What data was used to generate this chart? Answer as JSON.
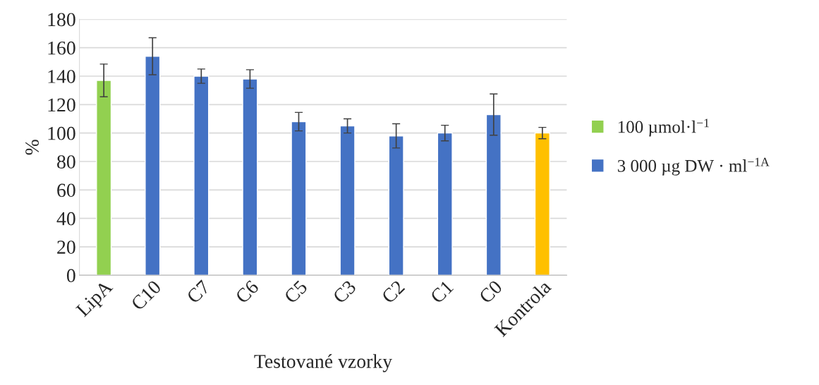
{
  "chart_data": {
    "type": "bar",
    "xlabel": "Testované vzorky",
    "ylabel": "%",
    "categories": [
      "LipA",
      "C10",
      "C7",
      "C6",
      "C5",
      "C3",
      "C2",
      "C1",
      "C0",
      "Kontrola"
    ],
    "series": [
      {
        "name": "100 µmol·l$^{−1}$",
        "color": "#92d050",
        "values": [
          137,
          null,
          null,
          null,
          null,
          null,
          null,
          null,
          null,
          null
        ],
        "errors": [
          11.5,
          null,
          null,
          null,
          null,
          null,
          null,
          null,
          null,
          null
        ]
      },
      {
        "name": "3 000 µg DW · ml$^{−1A}$",
        "color": "#4472c4",
        "values": [
          null,
          154,
          140,
          138,
          108,
          105,
          98,
          100,
          113,
          null
        ],
        "errors": [
          null,
          13,
          5,
          6.5,
          6.5,
          5,
          8.5,
          5.5,
          14.5,
          null
        ]
      },
      {
        "color": "#ffc000",
        "values": [
          null,
          null,
          null,
          null,
          null,
          null,
          null,
          null,
          null,
          100
        ],
        "errors": [
          null,
          null,
          null,
          null,
          null,
          null,
          null,
          null,
          null,
          4
        ]
      }
    ],
    "ylim": [
      0,
      180
    ],
    "yticks": [
      0,
      20,
      40,
      60,
      80,
      100,
      120,
      140,
      160,
      180
    ],
    "grid": "y",
    "legend": "right"
  }
}
